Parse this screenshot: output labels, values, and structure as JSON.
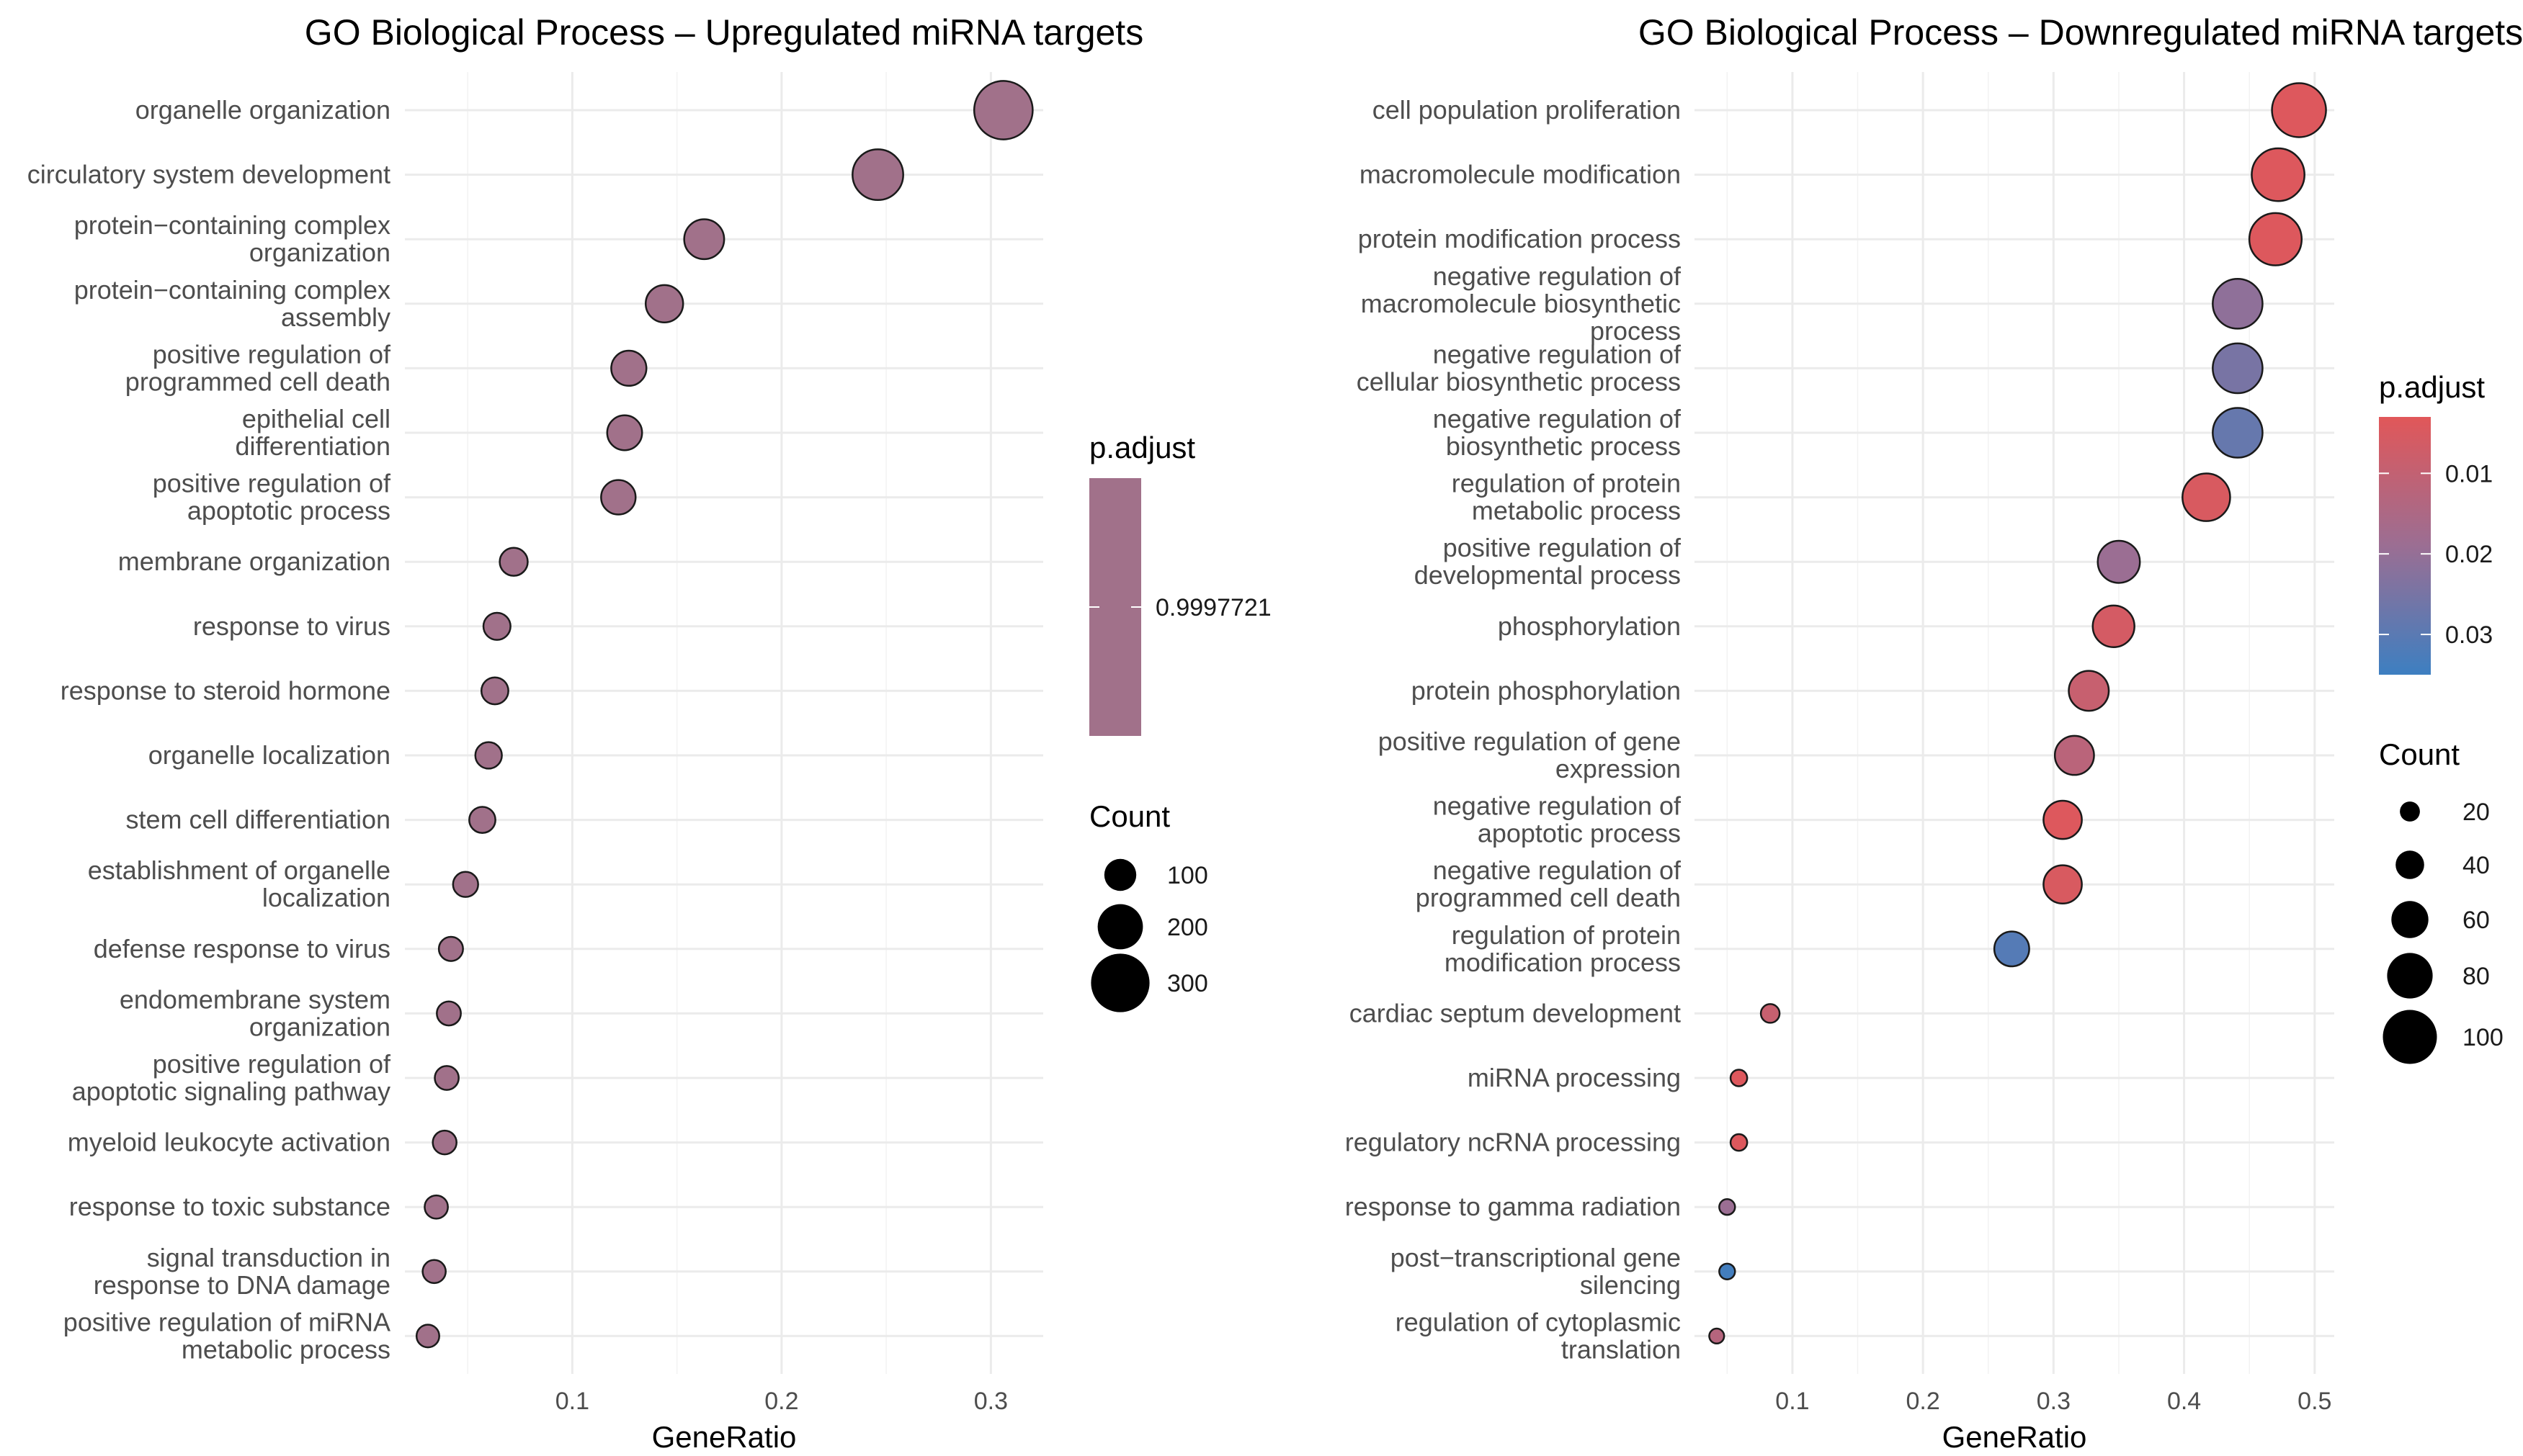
{
  "chart_data": [
    {
      "type": "scatter",
      "title": "GO Biological Process – Upregulated miRNA targets",
      "xlabel": "GeneRatio",
      "ylabel": "",
      "xlim": [
        0.02,
        0.325
      ],
      "x_ticks": [
        0.1,
        0.2,
        0.3
      ],
      "x_tick_labels": [
        "0.1",
        "0.2",
        "0.3"
      ],
      "categories": [
        "organelle organization",
        "circulatory system development",
        "protein−containing complex organization",
        "protein−containing complex assembly",
        "positive regulation of programmed cell death",
        "epithelial cell differentiation",
        "positive regulation of apoptotic process",
        "membrane organization",
        "response to virus",
        "response to steroid hormone",
        "organelle localization",
        "stem cell differentiation",
        "establishment of organelle localization",
        "defense response to virus",
        "endomembrane system organization",
        "positive regulation of apoptotic signaling pathway",
        "myeloid leukocyte activation",
        "response to toxic substance",
        "signal transduction in response to DNA damage",
        "positive regulation of miRNA metabolic process"
      ],
      "category_lines": [
        [
          "organelle organization"
        ],
        [
          "circulatory system development"
        ],
        [
          "protein−containing complex",
          "organization"
        ],
        [
          "protein−containing complex",
          "assembly"
        ],
        [
          "positive regulation of",
          "programmed cell death"
        ],
        [
          "epithelial cell",
          "differentiation"
        ],
        [
          "positive regulation of",
          "apoptotic process"
        ],
        [
          "membrane organization"
        ],
        [
          "response to virus"
        ],
        [
          "response to steroid hormone"
        ],
        [
          "organelle localization"
        ],
        [
          "stem cell differentiation"
        ],
        [
          "establishment of organelle",
          "localization"
        ],
        [
          "defense response to virus"
        ],
        [
          "endomembrane system",
          "organization"
        ],
        [
          "positive regulation of",
          "apoptotic signaling pathway"
        ],
        [
          "myeloid leukocyte activation"
        ],
        [
          "response to toxic substance"
        ],
        [
          "signal transduction in",
          "response to DNA damage"
        ],
        [
          "positive regulation of miRNA",
          "metabolic process"
        ]
      ],
      "gene_ratio": [
        0.306,
        0.246,
        0.163,
        0.144,
        0.127,
        0.125,
        0.122,
        0.072,
        0.064,
        0.063,
        0.06,
        0.057,
        0.049,
        0.042,
        0.041,
        0.04,
        0.039,
        0.035,
        0.034,
        0.031
      ],
      "count": [
        300,
        241,
        160,
        141,
        124,
        122,
        119,
        70,
        63,
        62,
        59,
        56,
        48,
        41,
        40,
        39,
        38,
        34,
        33,
        30
      ],
      "p_adjust": [
        0.9997721,
        0.9997721,
        0.9997721,
        0.9997721,
        0.9997721,
        0.9997721,
        0.9997721,
        0.9997721,
        0.9997721,
        0.9997721,
        0.9997721,
        0.9997721,
        0.9997721,
        0.9997721,
        0.9997721,
        0.9997721,
        0.9997721,
        0.9997721,
        0.9997721,
        0.9997721
      ],
      "point_color": "#a1718a",
      "legend": {
        "p_adjust_title": "p.adjust",
        "p_adjust_labels": [
          "0.9997721"
        ],
        "count_title": "Count",
        "count_breaks": [
          100,
          200,
          300
        ],
        "count_labels": [
          "100",
          "200",
          "300"
        ],
        "placement": "right"
      }
    },
    {
      "type": "scatter",
      "title": "GO Biological Process – Downregulated miRNA targets",
      "xlabel": "GeneRatio",
      "ylabel": "",
      "xlim": [
        0.025,
        0.515
      ],
      "x_ticks": [
        0.1,
        0.2,
        0.3,
        0.4,
        0.5
      ],
      "x_tick_labels": [
        "0.1",
        "0.2",
        "0.3",
        "0.4",
        "0.5"
      ],
      "categories": [
        "cell population proliferation",
        "macromolecule modification",
        "protein modification process",
        "negative regulation of macromolecule biosynthetic process",
        "negative regulation of cellular biosynthetic process",
        "negative regulation of biosynthetic process",
        "regulation of protein metabolic process",
        "positive regulation of developmental process",
        "phosphorylation",
        "protein phosphorylation",
        "positive regulation of gene expression",
        "negative regulation of apoptotic process",
        "negative regulation of programmed cell death",
        "regulation of protein modification process",
        "cardiac septum development",
        "miRNA processing",
        "regulatory ncRNA processing",
        "response to gamma radiation",
        "post−transcriptional gene silencing",
        "regulation of cytoplasmic translation"
      ],
      "category_lines": [
        [
          "cell population proliferation"
        ],
        [
          "macromolecule modification"
        ],
        [
          "protein modification process"
        ],
        [
          "negative regulation of",
          "macromolecule biosynthetic",
          "process"
        ],
        [
          "negative regulation of",
          "cellular biosynthetic process"
        ],
        [
          "negative regulation of",
          "biosynthetic process"
        ],
        [
          "regulation of protein",
          "metabolic process"
        ],
        [
          "positive regulation of",
          "developmental process"
        ],
        [
          "phosphorylation"
        ],
        [
          "protein phosphorylation"
        ],
        [
          "positive regulation of gene",
          "expression"
        ],
        [
          "negative regulation of",
          "apoptotic process"
        ],
        [
          "negative regulation of",
          "programmed cell death"
        ],
        [
          "regulation of protein",
          "modification process"
        ],
        [
          "cardiac septum development"
        ],
        [
          "miRNA processing"
        ],
        [
          "regulatory ncRNA processing"
        ],
        [
          "response to gamma radiation"
        ],
        [
          "post−transcriptional gene",
          "silencing"
        ],
        [
          "regulation of cytoplasmic",
          "translation"
        ]
      ],
      "gene_ratio": [
        0.488,
        0.472,
        0.47,
        0.441,
        0.441,
        0.441,
        0.417,
        0.35,
        0.346,
        0.327,
        0.316,
        0.307,
        0.307,
        0.268,
        0.083,
        0.059,
        0.059,
        0.05,
        0.05,
        0.042
      ],
      "count": [
        100,
        97,
        96,
        90,
        90,
        90,
        85,
        72,
        71,
        67,
        65,
        63,
        63,
        55,
        17,
        12,
        12,
        10,
        10,
        8
      ],
      "p_adjust": [
        0.004,
        0.004,
        0.004,
        0.021,
        0.025,
        0.028,
        0.005,
        0.019,
        0.006,
        0.009,
        0.012,
        0.004,
        0.005,
        0.031,
        0.009,
        0.004,
        0.004,
        0.019,
        0.034,
        0.013
      ],
      "legend": {
        "p_adjust_title": "p.adjust",
        "p_adjust_range": [
          0.003,
          0.035
        ],
        "p_adjust_breaks": [
          0.01,
          0.02,
          0.03
        ],
        "p_adjust_labels": [
          "0.01",
          "0.02",
          "0.03"
        ],
        "color_low": "#e15759",
        "color_high": "#3d7fc1",
        "count_title": "Count",
        "count_breaks": [
          20,
          40,
          60,
          80,
          100
        ],
        "count_labels": [
          "20",
          "40",
          "60",
          "80",
          "100"
        ],
        "placement": "right"
      }
    }
  ]
}
